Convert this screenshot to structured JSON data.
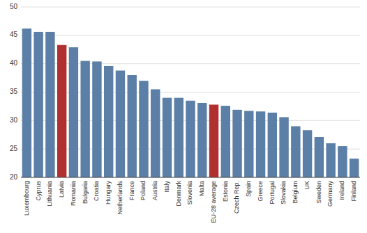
{
  "chart_data": {
    "type": "bar",
    "categories": [
      "Luxembourg",
      "Cyprus",
      "Lithuania",
      "Latvia",
      "Romania",
      "Bulgaria",
      "Croatia",
      "Hungary",
      "Netherlands",
      "France",
      "Poland",
      "Austria",
      "Italy",
      "Denmark",
      "Slovenia",
      "Malta",
      "EU-28 average",
      "Estonia",
      "Czech Rep.",
      "Spain",
      "Greece",
      "Portugal",
      "Slovakia",
      "Belgium",
      "UK",
      "Sweden",
      "Germany",
      "Ireland",
      "Finland"
    ],
    "values": [
      46.2,
      45.6,
      45.6,
      43.3,
      42.9,
      40.5,
      40.4,
      39.6,
      38.8,
      38.0,
      37.0,
      35.5,
      34.0,
      34.0,
      33.5,
      33.1,
      32.8,
      32.6,
      31.9,
      31.7,
      31.6,
      31.4,
      30.6,
      29.0,
      28.3,
      27.1,
      26.0,
      25.5,
      23.3
    ],
    "colors": [
      "#5b7fa6",
      "#5b7fa6",
      "#5b7fa6",
      "#b03030",
      "#5b7fa6",
      "#5b7fa6",
      "#5b7fa6",
      "#5b7fa6",
      "#5b7fa6",
      "#5b7fa6",
      "#5b7fa6",
      "#5b7fa6",
      "#5b7fa6",
      "#5b7fa6",
      "#5b7fa6",
      "#5b7fa6",
      "#b03030",
      "#5b7fa6",
      "#5b7fa6",
      "#5b7fa6",
      "#5b7fa6",
      "#5b7fa6",
      "#5b7fa6",
      "#5b7fa6",
      "#5b7fa6",
      "#5b7fa6",
      "#5b7fa6",
      "#5b7fa6",
      "#5b7fa6"
    ],
    "ylim": [
      20,
      50
    ],
    "yticks": [
      20,
      25,
      30,
      35,
      40,
      45,
      50
    ],
    "grid": true
  }
}
